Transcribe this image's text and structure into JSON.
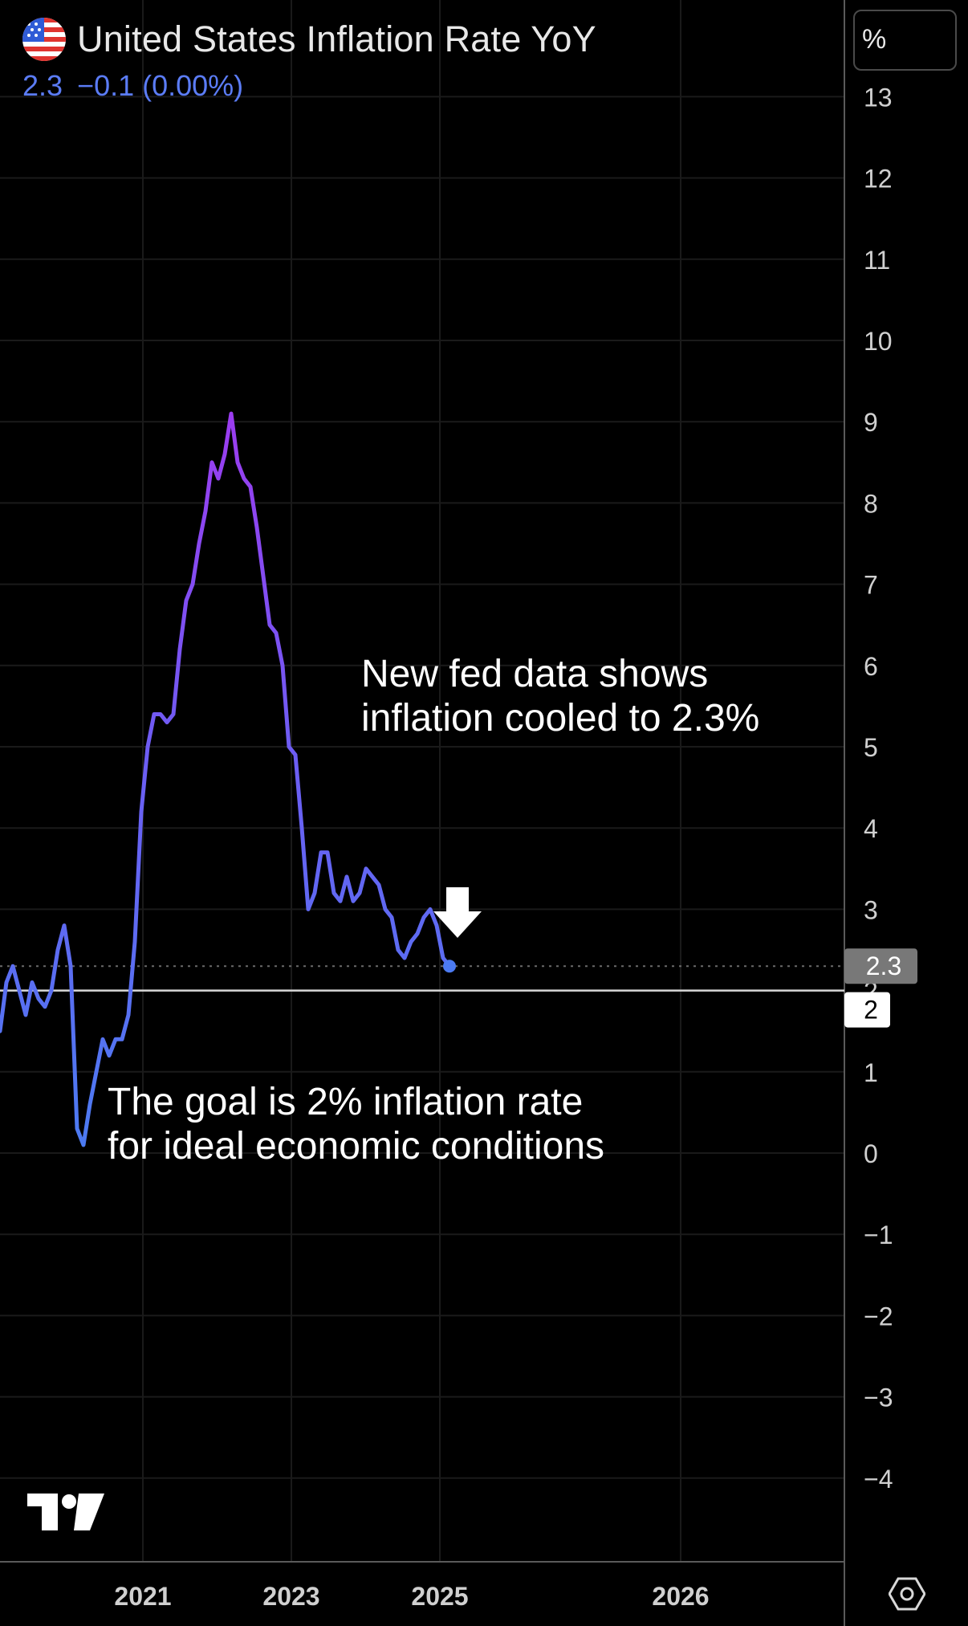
{
  "header": {
    "title": "United States Inflation Rate YoY",
    "last_value": "2.3",
    "change": "−0.1 (0.00%)",
    "flag_icon": "us-flag-icon"
  },
  "axis": {
    "unit_label": "%"
  },
  "annotations": {
    "top_line1": "New fed data shows",
    "top_line2": "inflation cooled to 2.3%",
    "bottom_line1": "The goal is 2% inflation rate",
    "bottom_line2": "for ideal economic conditions"
  },
  "colors": {
    "line_start": "#4c7bf2",
    "line_peak": "#9b3cf0",
    "quote": "#5b7cf5",
    "background": "#000000"
  },
  "icons": {
    "logo": "tradingview-logo-icon",
    "settings": "settings-hexagon-icon",
    "pointer": "down-arrow-icon"
  },
  "chart_data": {
    "type": "line",
    "title": "United States Inflation Rate YoY",
    "ylabel": "%",
    "ylim": [
      -5,
      14
    ],
    "y_ticks": [
      13,
      12,
      11,
      10,
      9,
      8,
      7,
      6,
      5,
      4,
      3,
      2,
      1,
      0,
      -1,
      -2,
      -3,
      -4
    ],
    "x_ticks": [
      "2021",
      "2023",
      "2025",
      "2026"
    ],
    "last_value_label": "2.3",
    "reference_line": {
      "value": 2,
      "label": "2"
    },
    "series": [
      {
        "values": [
          1.5,
          2.1,
          2.3,
          2.0,
          1.7,
          2.1,
          1.9,
          1.8,
          2.0,
          2.5,
          2.8,
          2.3,
          0.3,
          0.1,
          0.6,
          1.0,
          1.4,
          1.2,
          1.4,
          1.4,
          1.7,
          2.6,
          4.2,
          5.0,
          5.4,
          5.4,
          5.3,
          5.4,
          6.2,
          6.8,
          7.0,
          7.5,
          7.9,
          8.5,
          8.3,
          8.6,
          9.1,
          8.5,
          8.3,
          8.2,
          7.7,
          7.1,
          6.5,
          6.4,
          6.0,
          5.0,
          4.9,
          4.0,
          3.0,
          3.2,
          3.7,
          3.7,
          3.2,
          3.1,
          3.4,
          3.1,
          3.2,
          3.5,
          3.4,
          3.3,
          3.0,
          2.9,
          2.5,
          2.4,
          2.6,
          2.7,
          2.9,
          3.0,
          2.8,
          2.4,
          2.3
        ]
      }
    ]
  }
}
